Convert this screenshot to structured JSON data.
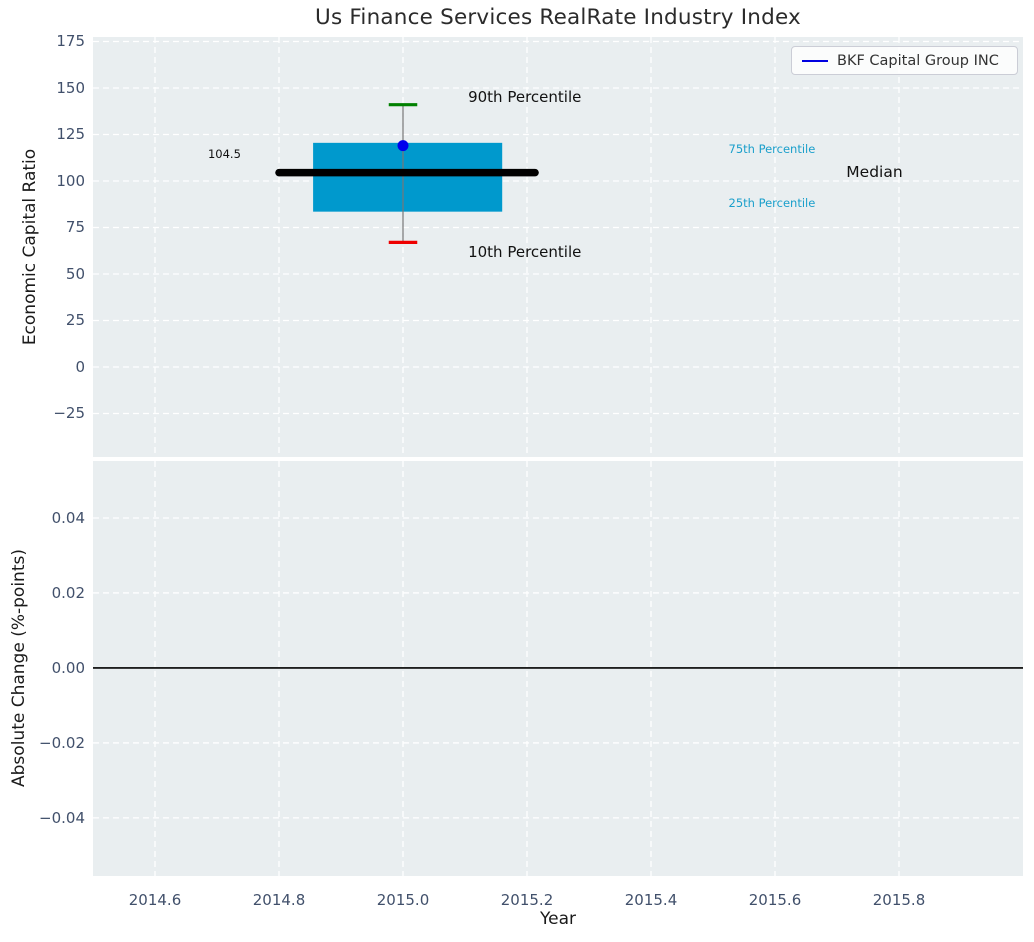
{
  "legend": {
    "label": "BKF Capital Group INC",
    "line_color": "#0000e0"
  },
  "chart_data": {
    "type": "box",
    "title": "Us Finance Services RealRate Industry Index",
    "xlabel": "Year",
    "xlim": [
      2014.5,
      2016.0
    ],
    "xticks": {
      "values": [
        2014.6,
        2014.8,
        2015.0,
        2015.2,
        2015.4,
        2015.6,
        2015.8
      ],
      "labels": [
        "2014.6",
        "2014.8",
        "2015.0",
        "2015.2",
        "2015.4",
        "2015.6",
        "2015.8"
      ]
    },
    "grid": {
      "on": true,
      "style": "dashed",
      "color": "#ffffff"
    },
    "legend_position": "upper right",
    "panels": [
      {
        "id": "economic-capital-ratio",
        "ylabel": "Economic Capital Ratio",
        "ylim": [
          -48.4,
          177.4
        ],
        "yticks": {
          "values": [
            175,
            150,
            125,
            100,
            75,
            50,
            25,
            0,
            -25
          ],
          "labels": [
            "175",
            "150",
            "125",
            "100",
            "75",
            "50",
            "25",
            "0",
            "−25"
          ]
        },
        "boxplot": {
          "year": 2015.0,
          "p10": 67,
          "p25": 83.5,
          "median": 104.5,
          "p75": 120.5,
          "p90": 141,
          "box_left": 2014.855,
          "box_right": 2015.16,
          "median_line_left": 2014.8,
          "median_line_right": 2015.213,
          "cap_half_width": 0.023
        },
        "company_point": {
          "name": "BKF Capital Group INC",
          "x": 2015.0,
          "y": 119
        },
        "annotations": [
          {
            "text": "90th Percentile",
            "x": 2015.105,
            "y": 145,
            "size": 15,
            "color": "#111111",
            "anchor": "start"
          },
          {
            "text": "10th Percentile",
            "x": 2015.105,
            "y": 62,
            "size": 15,
            "color": "#111111",
            "anchor": "start"
          },
          {
            "text": "75th Percentile",
            "x": 2015.525,
            "y": 117,
            "size": 11.5,
            "color": "#1a9fcb",
            "anchor": "start"
          },
          {
            "text": "25th Percentile",
            "x": 2015.525,
            "y": 88,
            "size": 11.5,
            "color": "#1a9fcb",
            "anchor": "start"
          },
          {
            "text": "Median",
            "x": 2015.715,
            "y": 105,
            "size": 15.5,
            "color": "#111111",
            "anchor": "start"
          },
          {
            "text": "104.5",
            "x": 2014.712,
            "y": 114.5,
            "size": 11.5,
            "color": "#111111",
            "anchor": "middle"
          }
        ]
      },
      {
        "id": "absolute-change",
        "ylabel": "Absolute Change (%-points)",
        "ylim": [
          -0.0555,
          0.0552
        ],
        "yticks": {
          "values": [
            0.04,
            0.02,
            0.0,
            -0.02,
            -0.04
          ],
          "labels": [
            "0.04",
            "0.02",
            "0.00",
            "−0.02",
            "−0.04"
          ]
        },
        "zero_line": {
          "y": 0.0
        }
      }
    ],
    "colors": {
      "panel_bg": "#e9eef0",
      "grid": "#ffffff",
      "box_fill": "#0099cd",
      "median_line": "#000000",
      "whisker": "#777777",
      "p90_cap": "#008000",
      "p10_cap": "#ee0000",
      "company_point": "#0000ee",
      "zero_line": "#000000"
    }
  }
}
